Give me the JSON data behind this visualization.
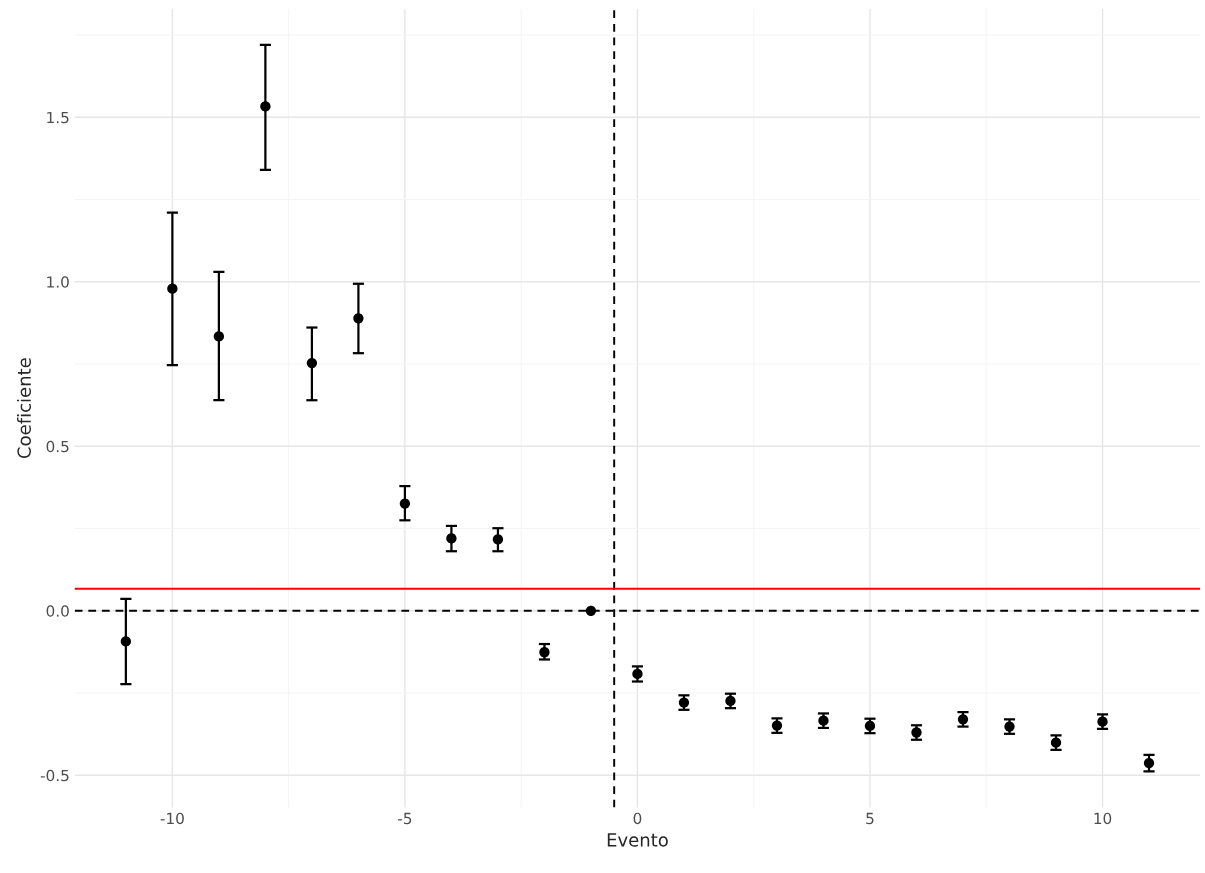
{
  "chart_data": {
    "type": "scatter",
    "xlabel": "Evento",
    "ylabel": "Coeficiente",
    "x": [
      -11,
      -10,
      -9,
      -8,
      -7,
      -6,
      -5,
      -4,
      -3,
      -2,
      -1,
      0,
      1,
      2,
      3,
      4,
      5,
      6,
      7,
      8,
      9,
      10,
      11
    ],
    "series": [
      {
        "color": "#000000",
        "values": [
          -0.093,
          0.979,
          0.834,
          1.533,
          0.753,
          0.889,
          0.326,
          0.22,
          0.217,
          -0.126,
          0,
          -0.192,
          -0.279,
          -0.274,
          -0.349,
          -0.334,
          -0.35,
          -0.37,
          -0.33,
          -0.352,
          -0.401,
          -0.337,
          -0.463
        ],
        "errors": [
          [
            -0.223,
            0.036
          ],
          [
            0.747,
            1.21
          ],
          [
            0.64,
            1.03
          ],
          [
            1.34,
            1.72
          ],
          [
            0.64,
            0.861
          ],
          [
            0.783,
            0.994
          ],
          [
            0.275,
            0.379
          ],
          [
            0.181,
            0.258
          ],
          [
            0.181,
            0.251
          ],
          [
            -0.148,
            -0.101
          ],
          null,
          [
            -0.215,
            -0.169
          ],
          [
            -0.301,
            -0.257
          ],
          [
            -0.296,
            -0.252
          ],
          [
            -0.371,
            -0.327
          ],
          [
            -0.356,
            -0.312
          ],
          [
            -0.372,
            -0.328
          ],
          [
            -0.392,
            -0.348
          ],
          [
            -0.352,
            -0.308
          ],
          [
            -0.374,
            -0.33
          ],
          [
            -0.423,
            -0.379
          ],
          [
            -0.359,
            -0.315
          ],
          [
            -0.488,
            -0.438
          ]
        ]
      }
    ],
    "xlim": [
      -12.1,
      12.1
    ],
    "xticks": [
      -10,
      -5,
      0,
      5,
      10
    ],
    "ylim": [
      -0.598,
      1.83
    ],
    "yticks": [
      -0.5,
      {
        "value": 0,
        "label": "0.0"
      },
      0.5,
      {
        "value": 1,
        "label": "1.0"
      },
      1.5
    ],
    "ref_lines": [
      {
        "axis": "y",
        "value": 0,
        "color": "#000000",
        "line_style": "dashed"
      },
      {
        "axis": "x",
        "value": -0.5,
        "color": "#000000",
        "line_style": "dashed"
      },
      {
        "axis": "y",
        "value": 0.067,
        "color": "#ff0000",
        "line_style": "solid"
      }
    ],
    "grid": true,
    "legend": false,
    "marker": "circle"
  }
}
